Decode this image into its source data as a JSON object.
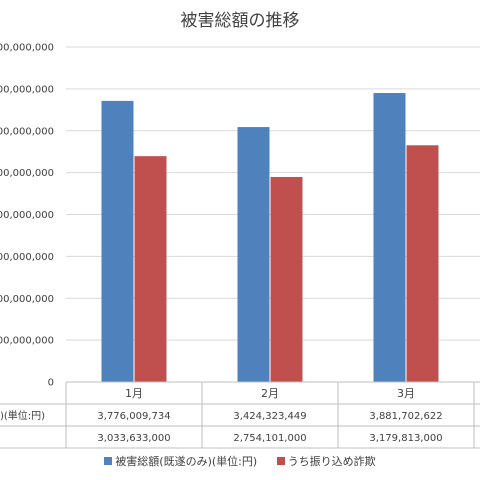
{
  "chart_data": {
    "type": "bar",
    "title": "被害総額の推移",
    "categories": [
      "1月",
      "2月",
      "3月"
    ],
    "series": [
      {
        "name": "被害総額(既遂のみ)(単位:円)",
        "values": [
          3776009734,
          3424323449,
          3881702622
        ],
        "color": "#4f81bd",
        "table_values": [
          "3,776,009,734",
          "3,424,323,449",
          "3,881,702,622"
        ]
      },
      {
        "name": "うち振り込め詐欺",
        "values": [
          3033633000,
          2754101000,
          3179813000
        ],
        "color": "#c0504d",
        "table_values": [
          "3,033,633,000",
          "2,754,101,000",
          "3,179,813,000"
        ]
      }
    ],
    "table_series_label": ")(単位:円)",
    "y_ticks": [
      "0",
      "00,000,000",
      "00,000,000",
      "00,000,000",
      "00,000,000",
      "00,000,000",
      "00,000,000",
      "00,000,000",
      "00,000,000"
    ],
    "ylim": [
      0,
      4500000000
    ],
    "grid": true,
    "legend_position": "bottom",
    "data_table": true
  }
}
